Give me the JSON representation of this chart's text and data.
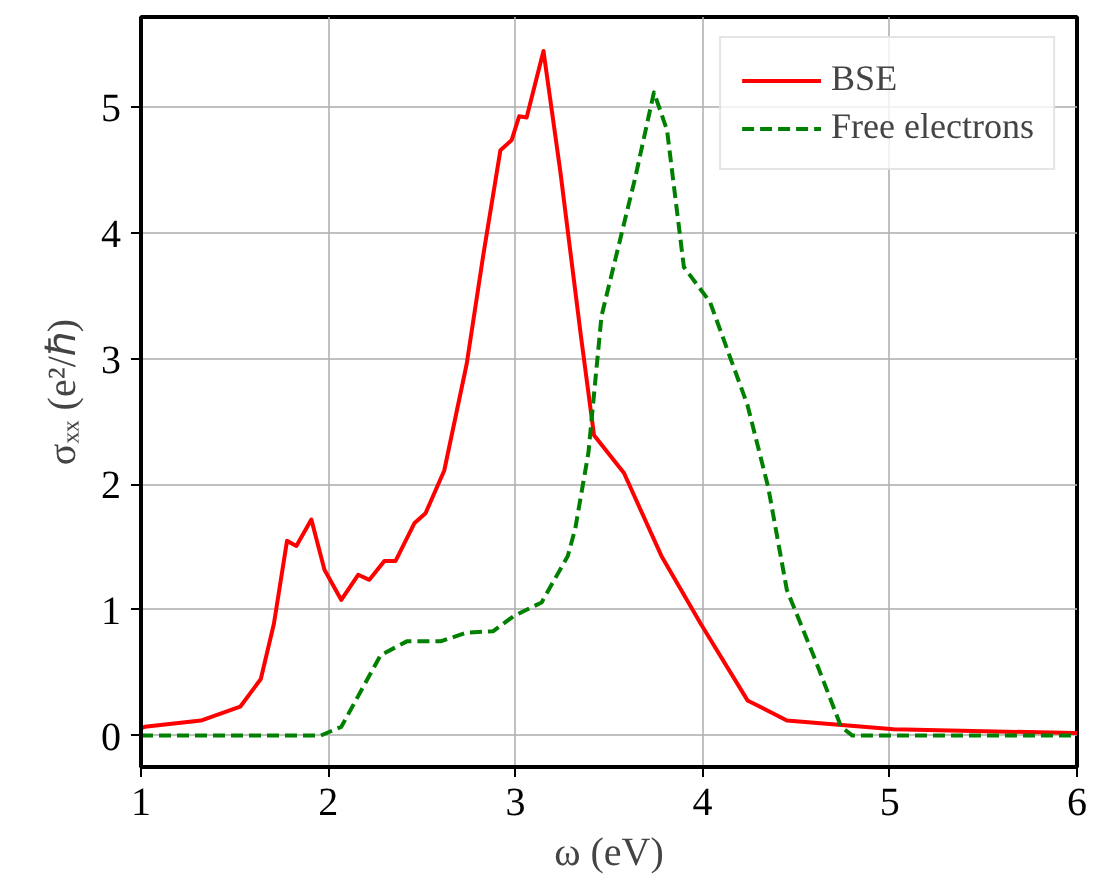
{
  "chart_data": {
    "type": "line",
    "xlabel": "ω (eV)",
    "ylabel": "σₓₓ (e²/ℏ)",
    "xlim": [
      1,
      6
    ],
    "ylim": [
      -0.25,
      5.72
    ],
    "xticks": [
      1,
      2,
      3,
      4,
      5,
      6
    ],
    "yticks": [
      0,
      1,
      2,
      3,
      4,
      5
    ],
    "grid": true,
    "legend": "top right",
    "series": [
      {
        "name": "BSE",
        "color": "#ff0000",
        "line_style": "solid",
        "x": [
          1.0,
          1.02,
          1.32,
          1.53,
          1.64,
          1.71,
          1.78,
          1.83,
          1.91,
          1.98,
          2.07,
          2.16,
          2.22,
          2.3,
          2.36,
          2.46,
          2.52,
          2.62,
          2.74,
          2.83,
          2.92,
          2.98,
          3.02,
          3.06,
          3.15,
          3.24,
          3.35,
          3.42,
          3.58,
          3.78,
          3.99,
          4.24,
          4.45,
          5.02,
          5.99,
          6.0
        ],
        "values": [
          0.06,
          0.07,
          0.12,
          0.23,
          0.45,
          0.89,
          1.55,
          1.51,
          1.72,
          1.32,
          1.08,
          1.28,
          1.24,
          1.39,
          1.39,
          1.69,
          1.77,
          2.11,
          2.96,
          3.84,
          4.66,
          4.74,
          4.93,
          4.92,
          5.45,
          4.49,
          3.18,
          2.39,
          2.09,
          1.43,
          0.89,
          0.28,
          0.12,
          0.05,
          0.02,
          0.02
        ]
      },
      {
        "name": "Free electrons",
        "color": "#008000",
        "line_style": "dashed",
        "x": [
          1.0,
          1.96,
          2.07,
          2.28,
          2.42,
          2.6,
          2.74,
          2.88,
          2.99,
          3.14,
          3.28,
          3.32,
          3.39,
          3.46,
          3.64,
          3.74,
          3.81,
          3.9,
          4.04,
          4.24,
          4.35,
          4.45,
          4.6,
          4.74,
          4.8,
          6.0
        ],
        "values": [
          0,
          0,
          0.07,
          0.64,
          0.75,
          0.75,
          0.82,
          0.83,
          0.95,
          1.06,
          1.43,
          1.65,
          2.25,
          3.34,
          4.44,
          5.12,
          4.82,
          3.73,
          3.45,
          2.63,
          1.98,
          1.16,
          0.61,
          0.07,
          0,
          0
        ]
      }
    ]
  }
}
